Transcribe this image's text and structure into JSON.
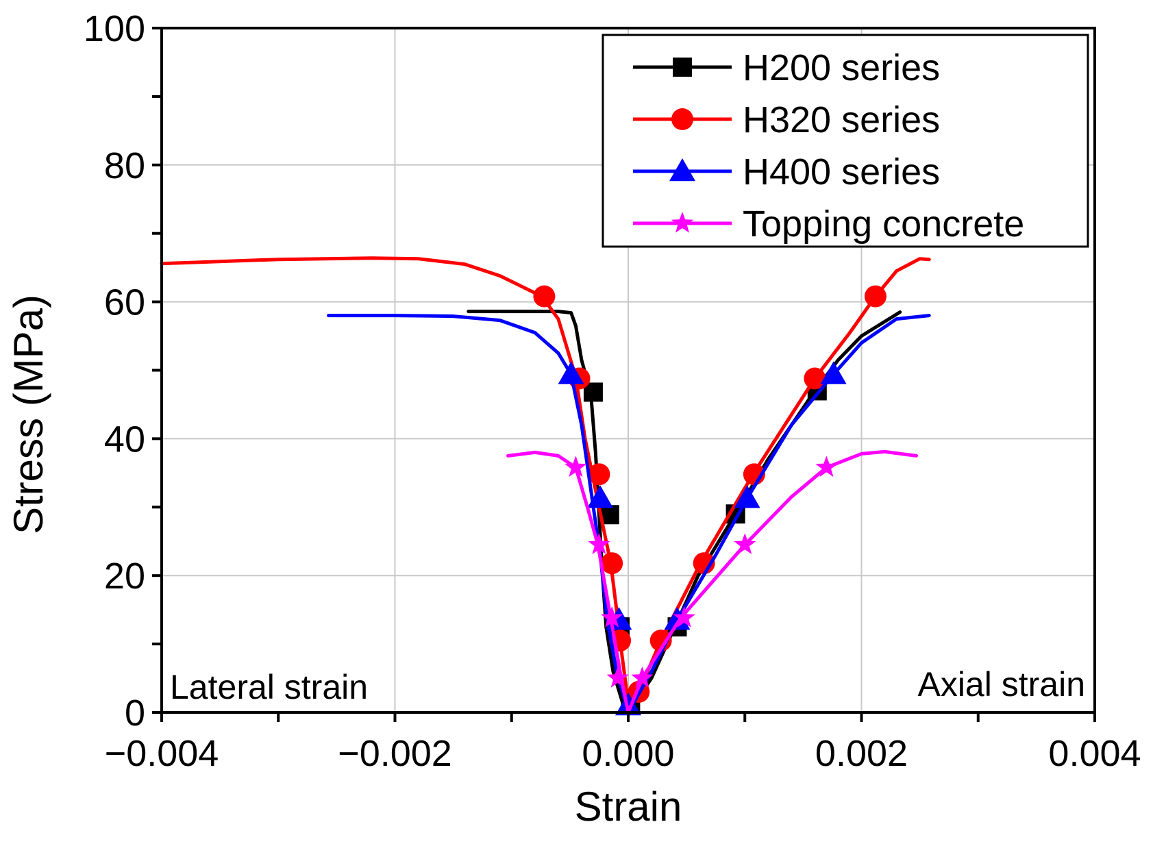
{
  "chart_data": {
    "type": "line",
    "xlabel": "Strain",
    "ylabel": "Stress (MPa)",
    "xlim": [
      -0.004,
      0.004
    ],
    "ylim": [
      0,
      100
    ],
    "x_ticks": [
      -0.004,
      -0.002,
      0.0,
      0.002,
      0.004
    ],
    "x_tick_labels": [
      "−0.004",
      "−0.002",
      "0.000",
      "0.002",
      "0.004"
    ],
    "y_ticks": [
      0,
      20,
      40,
      60,
      80,
      100
    ],
    "y_tick_labels": [
      "0",
      "20",
      "40",
      "60",
      "80",
      "100"
    ],
    "grid": true,
    "legend_position": "top-right",
    "annotations": [
      {
        "text": "Lateral strain",
        "position": "bottom-left"
      },
      {
        "text": "Axial strain",
        "position": "bottom-right"
      }
    ],
    "series": [
      {
        "name": "H200 series",
        "color": "#000000",
        "marker": "square",
        "curve": [
          [
            -0.00137,
            58.6
          ],
          [
            -0.0012,
            58.6
          ],
          [
            -0.0009,
            58.6
          ],
          [
            -0.0006,
            58.6
          ],
          [
            -0.00049,
            58.4
          ],
          [
            -0.00045,
            56.5
          ],
          [
            -0.0004,
            51.5
          ],
          [
            -0.00032,
            46.5
          ],
          [
            -0.00028,
            38.0
          ],
          [
            -0.00025,
            29.0
          ],
          [
            -0.00022,
            20.0
          ],
          [
            -0.00019,
            12.5
          ],
          [
            -0.00013,
            6.0
          ],
          [
            -5e-05,
            1.5
          ],
          [
            0.0,
            0.0
          ],
          [
            0.0002,
            5.0
          ],
          [
            0.0004,
            12.5
          ],
          [
            0.0006,
            20.0
          ],
          [
            0.00092,
            29.0
          ],
          [
            0.0012,
            37.0
          ],
          [
            0.0016,
            47.0
          ],
          [
            0.0018,
            51.5
          ],
          [
            0.002,
            55.0
          ],
          [
            0.00233,
            58.5
          ]
        ],
        "markers": [
          [
            -0.0003,
            46.8
          ],
          [
            -0.00016,
            28.9
          ],
          [
            -7e-05,
            12.5
          ],
          [
            2e-05,
            1.5
          ],
          [
            0.00042,
            12.5
          ],
          [
            0.00092,
            29.0
          ],
          [
            0.00162,
            47.0
          ]
        ]
      },
      {
        "name": "H320 series",
        "color": "#ff0000",
        "marker": "circle",
        "curve": [
          [
            -0.004,
            65.6
          ],
          [
            -0.003,
            66.2
          ],
          [
            -0.0022,
            66.4
          ],
          [
            -0.0018,
            66.3
          ],
          [
            -0.0014,
            65.5
          ],
          [
            -0.0011,
            63.8
          ],
          [
            -0.00074,
            60.8
          ],
          [
            -0.0006,
            57.5
          ],
          [
            -0.00045,
            49.0
          ],
          [
            -0.00037,
            40.0
          ],
          [
            -0.00025,
            30.0
          ],
          [
            -0.00015,
            21.8
          ],
          [
            -0.0001,
            15.0
          ],
          [
            -7e-05,
            10.5
          ],
          [
            -2e-05,
            4.0
          ],
          [
            0.0,
            0.0
          ],
          [
            9e-05,
            3.0
          ],
          [
            0.00028,
            10.5
          ],
          [
            0.00062,
            21.8
          ],
          [
            0.00107,
            34.8
          ],
          [
            0.0016,
            48.8
          ],
          [
            0.0019,
            55.5
          ],
          [
            0.00212,
            60.8
          ],
          [
            0.0023,
            64.5
          ],
          [
            0.0025,
            66.3
          ],
          [
            0.00258,
            66.2
          ]
        ],
        "markers": [
          [
            -0.00072,
            60.8
          ],
          [
            -0.00042,
            48.8
          ],
          [
            -0.00025,
            34.8
          ],
          [
            -0.00014,
            21.8
          ],
          [
            -7e-05,
            10.5
          ],
          [
            9e-05,
            3.0
          ],
          [
            0.00028,
            10.5
          ],
          [
            0.00065,
            21.8
          ],
          [
            0.00108,
            34.8
          ],
          [
            0.0016,
            48.8
          ],
          [
            0.00212,
            60.8
          ]
        ]
      },
      {
        "name": "H400 series",
        "color": "#0000ff",
        "marker": "triangle",
        "curve": [
          [
            -0.00257,
            58.0
          ],
          [
            -0.002,
            58.0
          ],
          [
            -0.0015,
            57.9
          ],
          [
            -0.0011,
            57.3
          ],
          [
            -0.0008,
            55.5
          ],
          [
            -0.0006,
            52.5
          ],
          [
            -0.00049,
            49.4
          ],
          [
            -0.0004,
            42.0
          ],
          [
            -0.00031,
            31.3
          ],
          [
            -0.00024,
            23.0
          ],
          [
            -0.00018,
            13.5
          ],
          [
            -0.0001,
            6.0
          ],
          [
            0.0,
            0.0
          ],
          [
            0.0002,
            6.0
          ],
          [
            0.00042,
            13.5
          ],
          [
            0.00075,
            23.0
          ],
          [
            0.00102,
            31.3
          ],
          [
            0.0014,
            42.0
          ],
          [
            0.00176,
            49.4
          ],
          [
            0.002,
            54.0
          ],
          [
            0.0023,
            57.5
          ],
          [
            0.00258,
            58.0
          ]
        ],
        "markers": [
          [
            -0.00049,
            49.4
          ],
          [
            -0.00024,
            31.3
          ],
          [
            -8e-05,
            13.5
          ],
          [
            0.0,
            1.0
          ],
          [
            0.00042,
            13.5
          ],
          [
            0.00102,
            31.3
          ],
          [
            0.00176,
            49.4
          ]
        ]
      },
      {
        "name": "Topping concrete",
        "color": "#ff00ff",
        "marker": "star",
        "curve": [
          [
            -0.00103,
            37.5
          ],
          [
            -0.0008,
            38.0
          ],
          [
            -0.0006,
            37.5
          ],
          [
            -0.00045,
            35.8
          ],
          [
            -0.00035,
            30.0
          ],
          [
            -0.00026,
            24.5
          ],
          [
            -0.00015,
            13.8
          ],
          [
            -6e-05,
            5.0
          ],
          [
            0.0,
            0.0
          ],
          [
            0.00012,
            5.0
          ],
          [
            0.00045,
            13.8
          ],
          [
            0.001,
            24.5
          ],
          [
            0.0014,
            31.5
          ],
          [
            0.0017,
            35.8
          ],
          [
            0.002,
            37.8
          ],
          [
            0.0022,
            38.1
          ],
          [
            0.00247,
            37.5
          ]
        ],
        "markers": [
          [
            -0.00045,
            35.8
          ],
          [
            -0.00025,
            24.5
          ],
          [
            -0.00014,
            13.8
          ],
          [
            -9e-05,
            5.0
          ],
          [
            0.00012,
            5.0
          ],
          [
            0.00048,
            13.8
          ],
          [
            0.001,
            24.5
          ],
          [
            0.0017,
            35.8
          ]
        ]
      }
    ]
  }
}
